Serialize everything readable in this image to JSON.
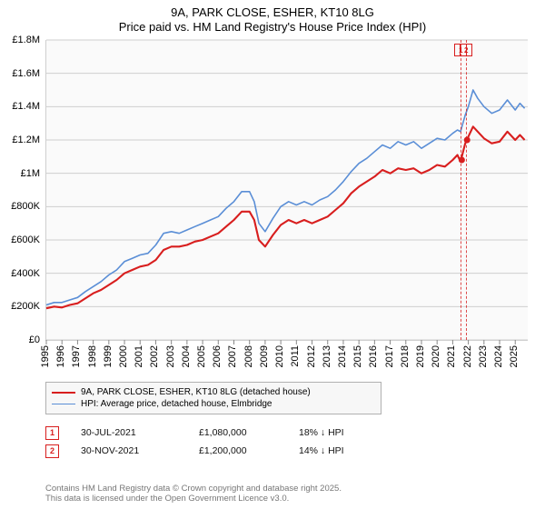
{
  "title_line1": "9A, PARK CLOSE, ESHER, KT10 8LG",
  "title_line2": "Price paid vs. HM Land Registry's House Price Index (HPI)",
  "chart": {
    "type": "line",
    "plot_bg": "#fafafa",
    "grid_color": "#cfcfcf",
    "x_years": [
      "1995",
      "1996",
      "1997",
      "1998",
      "1999",
      "2000",
      "2001",
      "2002",
      "2003",
      "2004",
      "2005",
      "2006",
      "2007",
      "2008",
      "2009",
      "2010",
      "2011",
      "2012",
      "2013",
      "2014",
      "2015",
      "2016",
      "2017",
      "2018",
      "2019",
      "2020",
      "2021",
      "2022",
      "2023",
      "2024",
      "2025"
    ],
    "xlim": [
      1995,
      2025.8
    ],
    "ylim": [
      0,
      1800000
    ],
    "ytick_step": 200000,
    "y_tick_labels": [
      "£0",
      "£200K",
      "£400K",
      "£600K",
      "£800K",
      "£1M",
      "£1.2M",
      "£1.4M",
      "£1.6M",
      "£1.8M"
    ],
    "title_fontsize": 13,
    "axis_label_fontsize": 11,
    "line_width_main": 2.1,
    "line_width_hpi": 1.6,
    "series": [
      {
        "name": "9A, PARK CLOSE, ESHER, KT10 8LG (detached house)",
        "color": "#d81e1e",
        "data": [
          [
            1995,
            190000
          ],
          [
            1995.5,
            200000
          ],
          [
            1996,
            195000
          ],
          [
            1996.5,
            210000
          ],
          [
            1997,
            220000
          ],
          [
            1997.5,
            250000
          ],
          [
            1998,
            280000
          ],
          [
            1998.5,
            300000
          ],
          [
            1999,
            330000
          ],
          [
            1999.5,
            360000
          ],
          [
            2000,
            400000
          ],
          [
            2000.5,
            420000
          ],
          [
            2001,
            440000
          ],
          [
            2001.5,
            450000
          ],
          [
            2002,
            480000
          ],
          [
            2002.5,
            540000
          ],
          [
            2003,
            560000
          ],
          [
            2003.5,
            560000
          ],
          [
            2004,
            570000
          ],
          [
            2004.5,
            590000
          ],
          [
            2005,
            600000
          ],
          [
            2005.5,
            620000
          ],
          [
            2006,
            640000
          ],
          [
            2006.5,
            680000
          ],
          [
            2007,
            720000
          ],
          [
            2007.5,
            770000
          ],
          [
            2008,
            770000
          ],
          [
            2008.3,
            720000
          ],
          [
            2008.6,
            600000
          ],
          [
            2009,
            560000
          ],
          [
            2009.5,
            630000
          ],
          [
            2010,
            690000
          ],
          [
            2010.5,
            720000
          ],
          [
            2011,
            700000
          ],
          [
            2011.5,
            720000
          ],
          [
            2012,
            700000
          ],
          [
            2012.5,
            720000
          ],
          [
            2013,
            740000
          ],
          [
            2013.5,
            780000
          ],
          [
            2014,
            820000
          ],
          [
            2014.5,
            880000
          ],
          [
            2015,
            920000
          ],
          [
            2015.5,
            950000
          ],
          [
            2016,
            980000
          ],
          [
            2016.5,
            1020000
          ],
          [
            2017,
            1000000
          ],
          [
            2017.5,
            1030000
          ],
          [
            2018,
            1020000
          ],
          [
            2018.5,
            1030000
          ],
          [
            2019,
            1000000
          ],
          [
            2019.5,
            1020000
          ],
          [
            2020,
            1050000
          ],
          [
            2020.5,
            1040000
          ],
          [
            2021,
            1080000
          ],
          [
            2021.3,
            1110000
          ],
          [
            2021.5,
            1070000
          ],
          [
            2021.8,
            1180000
          ],
          [
            2022,
            1220000
          ],
          [
            2022.3,
            1280000
          ],
          [
            2022.6,
            1250000
          ],
          [
            2023,
            1210000
          ],
          [
            2023.5,
            1180000
          ],
          [
            2024,
            1190000
          ],
          [
            2024.5,
            1250000
          ],
          [
            2025,
            1200000
          ],
          [
            2025.3,
            1230000
          ],
          [
            2025.6,
            1200000
          ]
        ]
      },
      {
        "name": "HPI: Average price, detached house, Elmbridge",
        "color": "#5a8ed6",
        "data": [
          [
            1995,
            210000
          ],
          [
            1995.5,
            225000
          ],
          [
            1996,
            225000
          ],
          [
            1996.5,
            240000
          ],
          [
            1997,
            255000
          ],
          [
            1997.5,
            290000
          ],
          [
            1998,
            320000
          ],
          [
            1998.5,
            350000
          ],
          [
            1999,
            390000
          ],
          [
            1999.5,
            420000
          ],
          [
            2000,
            470000
          ],
          [
            2000.5,
            490000
          ],
          [
            2001,
            510000
          ],
          [
            2001.5,
            520000
          ],
          [
            2002,
            570000
          ],
          [
            2002.5,
            640000
          ],
          [
            2003,
            650000
          ],
          [
            2003.5,
            640000
          ],
          [
            2004,
            660000
          ],
          [
            2004.5,
            680000
          ],
          [
            2005,
            700000
          ],
          [
            2005.5,
            720000
          ],
          [
            2006,
            740000
          ],
          [
            2006.5,
            790000
          ],
          [
            2007,
            830000
          ],
          [
            2007.5,
            890000
          ],
          [
            2008,
            890000
          ],
          [
            2008.3,
            830000
          ],
          [
            2008.6,
            700000
          ],
          [
            2009,
            650000
          ],
          [
            2009.5,
            730000
          ],
          [
            2010,
            800000
          ],
          [
            2010.5,
            830000
          ],
          [
            2011,
            810000
          ],
          [
            2011.5,
            830000
          ],
          [
            2012,
            810000
          ],
          [
            2012.5,
            840000
          ],
          [
            2013,
            860000
          ],
          [
            2013.5,
            900000
          ],
          [
            2014,
            950000
          ],
          [
            2014.5,
            1010000
          ],
          [
            2015,
            1060000
          ],
          [
            2015.5,
            1090000
          ],
          [
            2016,
            1130000
          ],
          [
            2016.5,
            1170000
          ],
          [
            2017,
            1150000
          ],
          [
            2017.5,
            1190000
          ],
          [
            2018,
            1170000
          ],
          [
            2018.5,
            1190000
          ],
          [
            2019,
            1150000
          ],
          [
            2019.5,
            1180000
          ],
          [
            2020,
            1210000
          ],
          [
            2020.5,
            1200000
          ],
          [
            2021,
            1240000
          ],
          [
            2021.3,
            1260000
          ],
          [
            2021.5,
            1250000
          ],
          [
            2021.8,
            1350000
          ],
          [
            2022,
            1400000
          ],
          [
            2022.3,
            1500000
          ],
          [
            2022.6,
            1450000
          ],
          [
            2023,
            1400000
          ],
          [
            2023.5,
            1360000
          ],
          [
            2024,
            1380000
          ],
          [
            2024.5,
            1440000
          ],
          [
            2025,
            1380000
          ],
          [
            2025.3,
            1420000
          ],
          [
            2025.6,
            1390000
          ]
        ]
      }
    ],
    "sale_markers": [
      {
        "n": "1",
        "x": 2021.58,
        "y": 1080000
      },
      {
        "n": "2",
        "x": 2021.92,
        "y": 1200000
      }
    ]
  },
  "legend": {
    "items": [
      {
        "color": "#d81e1e",
        "width": 2.4,
        "label": "9A, PARK CLOSE, ESHER, KT10 8LG (detached house)"
      },
      {
        "color": "#5a8ed6",
        "width": 1.8,
        "label": "HPI: Average price, detached house, Elmbridge"
      }
    ]
  },
  "table_rows": [
    {
      "n": "1",
      "color": "#d81e1e",
      "date": "30-JUL-2021",
      "price": "£1,080,000",
      "delta": "18% ↓ HPI"
    },
    {
      "n": "2",
      "color": "#d81e1e",
      "date": "30-NOV-2021",
      "price": "£1,200,000",
      "delta": "14% ↓ HPI"
    }
  ],
  "footer_line1": "Contains HM Land Registry data © Crown copyright and database right 2025.",
  "footer_line2": "This data is licensed under the Open Government Licence v3.0."
}
